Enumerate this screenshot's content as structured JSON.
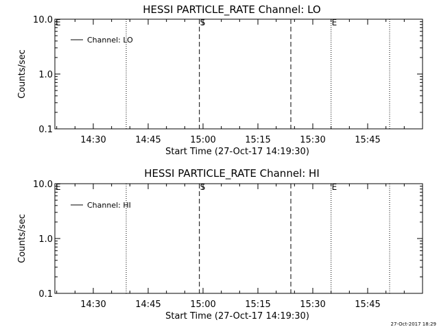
{
  "timestamp": "27-Oct-2017 18:29",
  "chart_data": [
    {
      "type": "line",
      "title": "HESSI PARTICLE_RATE Channel: LO",
      "xlabel": "Start Time (27-Oct-17 14:19:30)",
      "ylabel": "Counts/sec",
      "yscale": "log",
      "ylim": [
        0.1,
        10.0
      ],
      "yticks": [
        0.1,
        1.0,
        10.0
      ],
      "ytick_labels": [
        "0.1",
        "1.0",
        "10.0"
      ],
      "xlim": [
        "14:19:30",
        "16:00:00"
      ],
      "xticks": [
        "14:30",
        "14:45",
        "15:00",
        "15:15",
        "15:30",
        "15:45"
      ],
      "legend": "top-left",
      "series": [
        {
          "name": "Channel: LO",
          "values": []
        }
      ],
      "markers": [
        {
          "time": "14:19:30",
          "style": "none",
          "label": "E"
        },
        {
          "time": "14:39:00",
          "style": "dotted",
          "label": ""
        },
        {
          "time": "14:59:00",
          "style": "dashed",
          "label": "S"
        },
        {
          "time": "15:24:00",
          "style": "dashed",
          "label": ""
        },
        {
          "time": "15:35:00",
          "style": "dotted",
          "label": "E"
        },
        {
          "time": "15:51:00",
          "style": "dotted",
          "label": ""
        }
      ]
    },
    {
      "type": "line",
      "title": "HESSI PARTICLE_RATE Channel: HI",
      "xlabel": "Start Time (27-Oct-17 14:19:30)",
      "ylabel": "Counts/sec",
      "yscale": "log",
      "ylim": [
        0.1,
        10.0
      ],
      "yticks": [
        0.1,
        1.0,
        10.0
      ],
      "ytick_labels": [
        "0.1",
        "1.0",
        "10.0"
      ],
      "xlim": [
        "14:19:30",
        "16:00:00"
      ],
      "xticks": [
        "14:30",
        "14:45",
        "15:00",
        "15:15",
        "15:30",
        "15:45"
      ],
      "legend": "top-left",
      "series": [
        {
          "name": "Channel: HI",
          "values": []
        }
      ],
      "markers": [
        {
          "time": "14:19:30",
          "style": "none",
          "label": "E"
        },
        {
          "time": "14:39:00",
          "style": "dotted",
          "label": ""
        },
        {
          "time": "14:59:00",
          "style": "dashed",
          "label": "S"
        },
        {
          "time": "15:24:00",
          "style": "dashed",
          "label": ""
        },
        {
          "time": "15:35:00",
          "style": "dotted",
          "label": "E"
        },
        {
          "time": "15:51:00",
          "style": "dotted",
          "label": ""
        }
      ]
    }
  ]
}
